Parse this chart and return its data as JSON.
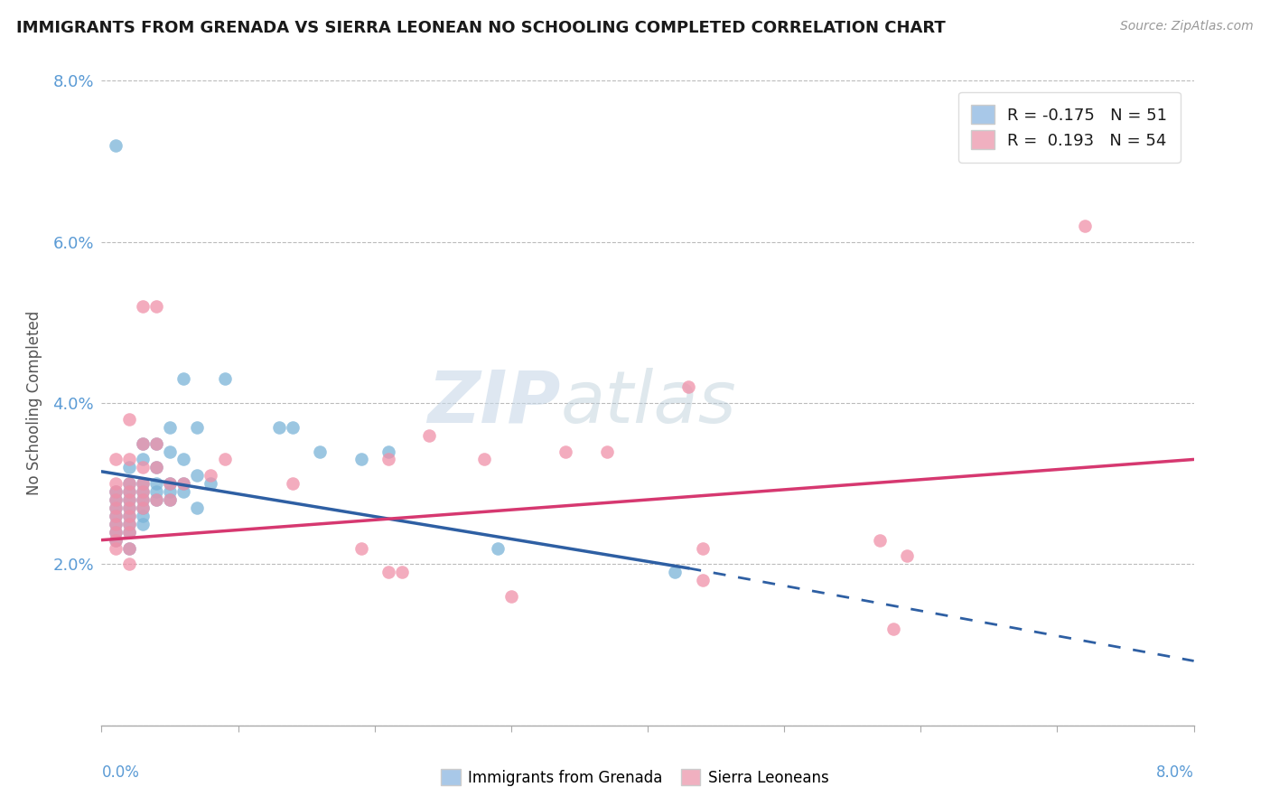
{
  "title": "IMMIGRANTS FROM GRENADA VS SIERRA LEONEAN NO SCHOOLING COMPLETED CORRELATION CHART",
  "source": "Source: ZipAtlas.com",
  "ylabel": "No Schooling Completed",
  "xmin": 0.0,
  "xmax": 0.08,
  "ymin": 0.0,
  "ymax": 0.08,
  "yticks": [
    0.0,
    0.02,
    0.04,
    0.06,
    0.08
  ],
  "ytick_labels": [
    "",
    "2.0%",
    "4.0%",
    "6.0%",
    "8.0%"
  ],
  "xtick_labels": [
    "0.0%",
    "",
    "",
    "",
    "",
    "",
    "",
    "",
    "8.0%"
  ],
  "grenada_color": "#7ab4d8",
  "sierra_color": "#f090a8",
  "trend_grenada_color": "#2e5fa3",
  "trend_sierra_color": "#d63870",
  "background_color": "#ffffff",
  "legend_patch_grenada": "#a8c8e8",
  "legend_patch_sierra": "#f0b0c0",
  "grenada_R": -0.175,
  "grenada_N": 51,
  "sierra_R": 0.193,
  "sierra_N": 54,
  "trend_grenada_x0": 0.0,
  "trend_grenada_y0": 0.0315,
  "trend_grenada_x1": 0.043,
  "trend_grenada_y1": 0.0195,
  "trend_grenada_dash_x1": 0.08,
  "trend_grenada_dash_y1": 0.008,
  "trend_sierra_x0": 0.0,
  "trend_sierra_y0": 0.023,
  "trend_sierra_x1": 0.08,
  "trend_sierra_y1": 0.033,
  "grenada_points": [
    [
      0.001,
      0.072
    ],
    [
      0.006,
      0.043
    ],
    [
      0.009,
      0.043
    ],
    [
      0.005,
      0.037
    ],
    [
      0.007,
      0.037
    ],
    [
      0.013,
      0.037
    ],
    [
      0.014,
      0.037
    ],
    [
      0.003,
      0.035
    ],
    [
      0.004,
      0.035
    ],
    [
      0.005,
      0.034
    ],
    [
      0.016,
      0.034
    ],
    [
      0.021,
      0.034
    ],
    [
      0.003,
      0.033
    ],
    [
      0.006,
      0.033
    ],
    [
      0.019,
      0.033
    ],
    [
      0.002,
      0.032
    ],
    [
      0.004,
      0.032
    ],
    [
      0.007,
      0.031
    ],
    [
      0.002,
      0.03
    ],
    [
      0.003,
      0.03
    ],
    [
      0.004,
      0.03
    ],
    [
      0.005,
      0.03
    ],
    [
      0.006,
      0.03
    ],
    [
      0.008,
      0.03
    ],
    [
      0.001,
      0.029
    ],
    [
      0.002,
      0.029
    ],
    [
      0.003,
      0.029
    ],
    [
      0.004,
      0.029
    ],
    [
      0.005,
      0.029
    ],
    [
      0.006,
      0.029
    ],
    [
      0.001,
      0.028
    ],
    [
      0.002,
      0.028
    ],
    [
      0.003,
      0.028
    ],
    [
      0.004,
      0.028
    ],
    [
      0.005,
      0.028
    ],
    [
      0.001,
      0.027
    ],
    [
      0.002,
      0.027
    ],
    [
      0.003,
      0.027
    ],
    [
      0.007,
      0.027
    ],
    [
      0.001,
      0.026
    ],
    [
      0.002,
      0.026
    ],
    [
      0.003,
      0.026
    ],
    [
      0.001,
      0.025
    ],
    [
      0.002,
      0.025
    ],
    [
      0.003,
      0.025
    ],
    [
      0.001,
      0.024
    ],
    [
      0.002,
      0.024
    ],
    [
      0.001,
      0.023
    ],
    [
      0.002,
      0.022
    ],
    [
      0.029,
      0.022
    ],
    [
      0.042,
      0.019
    ]
  ],
  "sierra_points": [
    [
      0.072,
      0.062
    ],
    [
      0.003,
      0.052
    ],
    [
      0.004,
      0.052
    ],
    [
      0.043,
      0.042
    ],
    [
      0.002,
      0.038
    ],
    [
      0.024,
      0.036
    ],
    [
      0.003,
      0.035
    ],
    [
      0.004,
      0.035
    ],
    [
      0.034,
      0.034
    ],
    [
      0.037,
      0.034
    ],
    [
      0.001,
      0.033
    ],
    [
      0.002,
      0.033
    ],
    [
      0.009,
      0.033
    ],
    [
      0.021,
      0.033
    ],
    [
      0.028,
      0.033
    ],
    [
      0.003,
      0.032
    ],
    [
      0.004,
      0.032
    ],
    [
      0.008,
      0.031
    ],
    [
      0.001,
      0.03
    ],
    [
      0.002,
      0.03
    ],
    [
      0.003,
      0.03
    ],
    [
      0.005,
      0.03
    ],
    [
      0.006,
      0.03
    ],
    [
      0.014,
      0.03
    ],
    [
      0.001,
      0.029
    ],
    [
      0.002,
      0.029
    ],
    [
      0.003,
      0.029
    ],
    [
      0.001,
      0.028
    ],
    [
      0.002,
      0.028
    ],
    [
      0.003,
      0.028
    ],
    [
      0.004,
      0.028
    ],
    [
      0.005,
      0.028
    ],
    [
      0.001,
      0.027
    ],
    [
      0.002,
      0.027
    ],
    [
      0.003,
      0.027
    ],
    [
      0.001,
      0.026
    ],
    [
      0.002,
      0.026
    ],
    [
      0.001,
      0.025
    ],
    [
      0.002,
      0.025
    ],
    [
      0.001,
      0.024
    ],
    [
      0.002,
      0.024
    ],
    [
      0.001,
      0.023
    ],
    [
      0.057,
      0.023
    ],
    [
      0.001,
      0.022
    ],
    [
      0.002,
      0.022
    ],
    [
      0.019,
      0.022
    ],
    [
      0.044,
      0.022
    ],
    [
      0.059,
      0.021
    ],
    [
      0.002,
      0.02
    ],
    [
      0.021,
      0.019
    ],
    [
      0.022,
      0.019
    ],
    [
      0.044,
      0.018
    ],
    [
      0.03,
      0.016
    ],
    [
      0.058,
      0.012
    ]
  ]
}
